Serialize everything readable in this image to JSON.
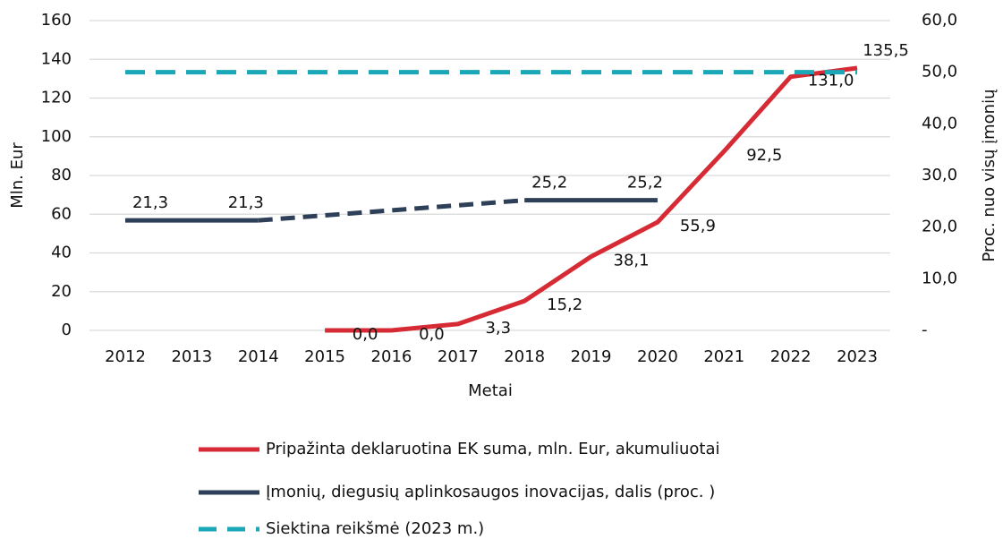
{
  "chart_data": {
    "type": "line",
    "xlabel": "Metai",
    "ylabel": "Mln. Eur",
    "y2label": "Proc. nuo visų įmonių",
    "categories": [
      "2012",
      "2013",
      "2014",
      "2015",
      "2016",
      "2017",
      "2018",
      "2019",
      "2020",
      "2021",
      "2022",
      "2023"
    ],
    "ylim": [
      0,
      160
    ],
    "yticks": [
      0,
      20,
      40,
      60,
      80,
      100,
      120,
      140,
      160
    ],
    "y2lim": [
      0,
      60
    ],
    "y2ticks": [
      {
        "value": 0,
        "label": "-"
      },
      {
        "value": 10,
        "label": "10,0"
      },
      {
        "value": 20,
        "label": "20,0"
      },
      {
        "value": 30,
        "label": "30,0"
      },
      {
        "value": 40,
        "label": "40,0"
      },
      {
        "value": 50,
        "label": "50,0"
      },
      {
        "value": 60,
        "label": "60,0"
      }
    ],
    "grid": true,
    "legend": "bottom",
    "series": [
      {
        "name": "Pripažinta deklaruotina EK suma, mln. Eur, akumuliuotai",
        "color": "#d62b35",
        "axis": "y",
        "style": "solid",
        "values": [
          null,
          null,
          null,
          0.0,
          0.0,
          3.3,
          15.2,
          38.1,
          55.9,
          92.5,
          131.0,
          135.5
        ],
        "value_labels": [
          null,
          null,
          null,
          "0,0",
          "0,0",
          "3,3",
          "15,2",
          "38,1",
          "55,9",
          "92,5",
          "131,0",
          "135,5"
        ]
      },
      {
        "name": "Įmonių, diegusių aplinkosaugos inovacijas, dalis (proc. )",
        "color": "#2e3f58",
        "axis": "y2",
        "style": "solid",
        "gap_style": "dashed",
        "values": [
          21.3,
          21.3,
          21.3,
          null,
          null,
          null,
          25.2,
          25.2,
          25.2,
          null,
          null,
          null
        ],
        "value_labels": [
          "21,3",
          null,
          "21,3",
          null,
          null,
          null,
          "25,2",
          null,
          "25,2",
          null,
          null,
          null
        ]
      },
      {
        "name": "Siektina reikšmė (2023 m.)",
        "color": "#1aa7b8",
        "axis": "y2",
        "style": "dashed",
        "values": [
          50,
          50,
          50,
          50,
          50,
          50,
          50,
          50,
          50,
          50,
          50,
          50
        ]
      }
    ]
  }
}
